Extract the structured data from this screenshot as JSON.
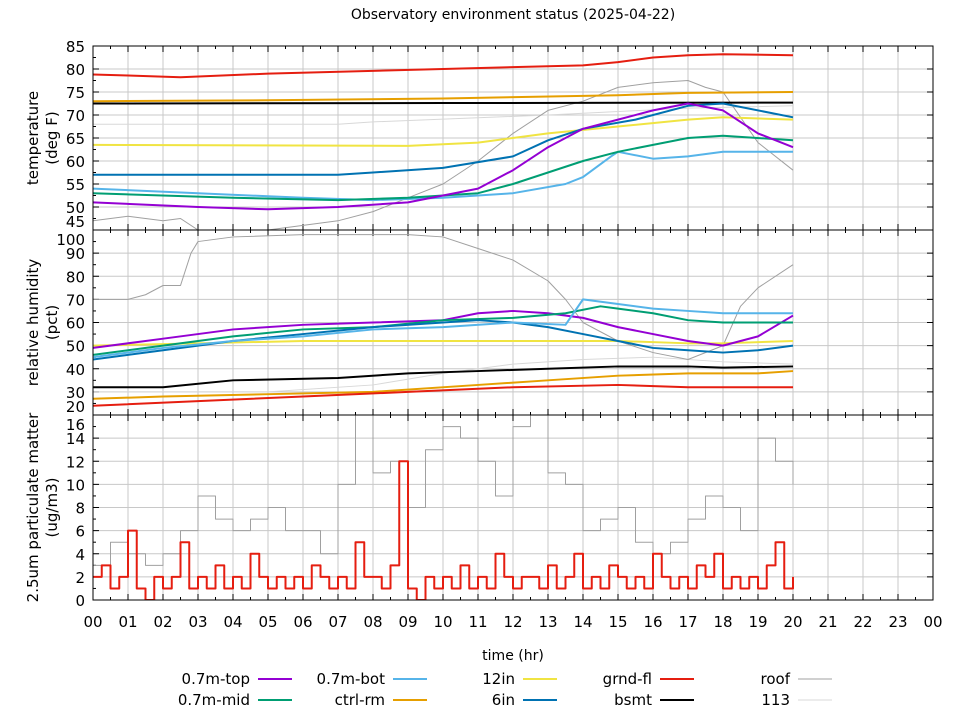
{
  "chart_data": {
    "type": "line",
    "title": "Observatory environment status (2025-04-22)",
    "xlabel": "time (hr)",
    "xlim": [
      0,
      24
    ],
    "xticks": [
      "00",
      "01",
      "02",
      "03",
      "04",
      "05",
      "06",
      "07",
      "08",
      "09",
      "10",
      "11",
      "12",
      "13",
      "14",
      "15",
      "16",
      "17",
      "18",
      "19",
      "20",
      "21",
      "22",
      "23",
      "00"
    ],
    "colors": {
      "0.7m-top": "#9400d3",
      "0.7m-mid": "#009e73",
      "0.7m-bot": "#56b4e9",
      "ctrl-rm": "#e69f00",
      "12in": "#f0e442",
      "6in": "#0072b2",
      "grnd-fl": "#e51e10",
      "bsmt": "#000000",
      "roof": "#a0a0a0",
      "113": "#d8d8d8"
    },
    "legend": {
      "placement": "bottom",
      "entries": [
        "0.7m-top",
        "0.7m-bot",
        "12in",
        "grnd-fl",
        "roof",
        "0.7m-mid",
        "ctrl-rm",
        "6in",
        "bsmt",
        "113"
      ]
    },
    "panels": [
      {
        "ylabel": [
          "temperature",
          "(deg F)"
        ],
        "ylim": [
          45,
          85
        ],
        "yticks": [
          "45",
          "50",
          "55",
          "60",
          "65",
          "70",
          "75",
          "80",
          "85"
        ],
        "series": [
          {
            "name": "113",
            "x": [
              0,
              7,
              8,
              13,
              17,
              20
            ],
            "y": [
              68,
              68,
              68.5,
              70,
              71.5,
              72
            ]
          },
          {
            "name": "roof",
            "x": [
              0,
              1,
              2,
              2.5,
              3,
              5,
              6,
              7,
              8,
              9,
              10,
              11,
              12,
              13,
              14,
              15,
              16,
              17,
              17.5,
              18,
              19,
              20
            ],
            "y": [
              47,
              48,
              47,
              47.5,
              45,
              45,
              46,
              47,
              49,
              52,
              55,
              60,
              66,
              71,
              73,
              76,
              77,
              77.5,
              76,
              75,
              64,
              58
            ]
          },
          {
            "name": "grnd-fl",
            "x": [
              0,
              1,
              2.5,
              5,
              10,
              14,
              15,
              16,
              17,
              18,
              20
            ],
            "y": [
              78.8,
              78.6,
              78.2,
              79,
              80,
              80.8,
              81.5,
              82.5,
              83,
              83.2,
              83
            ]
          },
          {
            "name": "ctrl-rm",
            "x": [
              0,
              5,
              10,
              15,
              17,
              20
            ],
            "y": [
              73,
              73.2,
              73.6,
              74.3,
              74.8,
              75
            ]
          },
          {
            "name": "bsmt",
            "x": [
              0,
              10,
              20
            ],
            "y": [
              72.5,
              72.6,
              72.7
            ]
          },
          {
            "name": "12in",
            "x": [
              0,
              9,
              11,
              13,
              15,
              17,
              18,
              20
            ],
            "y": [
              63.5,
              63.3,
              64,
              66,
              67.5,
              69,
              69.5,
              69
            ]
          },
          {
            "name": "6in",
            "x": [
              0,
              7,
              8,
              10,
              12,
              13,
              14,
              15.5,
              17,
              18,
              20
            ],
            "y": [
              57,
              57,
              57.5,
              58.5,
              61,
              64.5,
              67,
              69,
              72,
              72.5,
              69.5
            ]
          },
          {
            "name": "0.7m-bot",
            "x": [
              0,
              3,
              6,
              8,
              10,
              12,
              13.5,
              14,
              14.8,
              15,
              16,
              17,
              18,
              20
            ],
            "y": [
              54,
              53,
              52,
              51.5,
              52,
              53,
              55,
              56.5,
              61,
              62,
              60.5,
              61,
              62,
              62
            ]
          },
          {
            "name": "0.7m-mid",
            "x": [
              0,
              4,
              7,
              9,
              11,
              12,
              13,
              14,
              15,
              16,
              17,
              18,
              20
            ],
            "y": [
              53,
              52,
              51.5,
              52,
              53,
              55,
              57.5,
              60,
              62,
              63.5,
              65,
              65.5,
              64.5
            ]
          },
          {
            "name": "0.7m-top",
            "x": [
              0,
              3,
              5,
              7,
              9,
              11,
              12,
              13,
              14,
              15,
              16,
              17,
              18,
              19,
              20
            ],
            "y": [
              51,
              50,
              49.5,
              50,
              51,
              54,
              58,
              63,
              67,
              69,
              71,
              72.5,
              71,
              66,
              63
            ]
          }
        ]
      },
      {
        "ylabel": [
          "relative humidity",
          "(pct)"
        ],
        "ylim": [
          20,
          100
        ],
        "yticks": [
          "20",
          "30",
          "40",
          "50",
          "60",
          "70",
          "80",
          "90",
          "100"
        ],
        "series": [
          {
            "name": "113",
            "x": [
              0,
              5,
              8,
              10,
              12,
              14,
              16,
              18,
              20
            ],
            "y": [
              30,
              30,
              33,
              38,
              42,
              44,
              45,
              43,
              42
            ]
          },
          {
            "name": "roof",
            "x": [
              0,
              1,
              1.5,
              2,
              2.5,
              2.8,
              3,
              4,
              6,
              8,
              9,
              10,
              11,
              12,
              13,
              13.5,
              14,
              15,
              16,
              17,
              18,
              18.5,
              19,
              20
            ],
            "y": [
              70,
              70,
              72,
              76,
              76,
              90,
              95,
              97,
              98,
              98,
              98,
              97,
              92,
              87,
              78,
              70,
              60,
              52,
              47,
              44,
              50,
              67,
              75,
              85
            ]
          },
          {
            "name": "bsmt",
            "x": [
              0,
              2,
              4,
              7,
              9,
              11,
              13,
              15,
              17,
              18,
              20
            ],
            "y": [
              32,
              32,
              35,
              36,
              38,
              39,
              40,
              41,
              41,
              40.5,
              41
            ]
          },
          {
            "name": "ctrl-rm",
            "x": [
              0,
              2,
              5,
              8,
              11,
              13,
              15,
              17,
              19,
              20
            ],
            "y": [
              27,
              28,
              29,
              30,
              33,
              35,
              37,
              38,
              38,
              39
            ]
          },
          {
            "name": "grnd-fl",
            "x": [
              0,
              3,
              6,
              9,
              12,
              15,
              17,
              20
            ],
            "y": [
              24,
              26,
              28,
              30,
              32,
              33,
              32,
              32
            ]
          },
          {
            "name": "12in",
            "x": [
              0,
              3,
              6,
              10,
              13,
              15,
              17,
              18,
              20
            ],
            "y": [
              50,
              51,
              52,
              52,
              52,
              52,
              51,
              51,
              52
            ]
          },
          {
            "name": "0.7m-top",
            "x": [
              0,
              2,
              4,
              6,
              8,
              10,
              11,
              12,
              13,
              14,
              15,
              16,
              17,
              18,
              19,
              20
            ],
            "y": [
              49,
              53,
              57,
              59,
              60,
              61,
              64,
              65,
              64,
              62,
              58,
              55,
              52,
              50,
              54,
              63
            ]
          },
          {
            "name": "0.7m-mid",
            "x": [
              0,
              2,
              4,
              6,
              8,
              10,
              12,
              13.5,
              14.5,
              15,
              16,
              17,
              18,
              20
            ],
            "y": [
              46,
              50,
              54,
              57,
              58,
              61,
              62,
              64,
              67,
              66,
              64,
              61,
              60,
              60
            ]
          },
          {
            "name": "6in",
            "x": [
              0,
              2,
              4,
              6,
              8,
              10,
              11,
              12,
              13,
              14,
              15,
              16,
              17,
              18,
              19,
              20
            ],
            "y": [
              44,
              48,
              52,
              55,
              58,
              60,
              61,
              60,
              58,
              55,
              52,
              49,
              48,
              47,
              48,
              50
            ]
          },
          {
            "name": "0.7m-bot",
            "x": [
              0,
              2,
              4,
              6,
              8,
              10,
              12,
              13.5,
              14,
              15,
              16,
              17,
              18,
              20
            ],
            "y": [
              45,
              49,
              52,
              54,
              57,
              58,
              60,
              59,
              70,
              68,
              66,
              65,
              64,
              64
            ]
          }
        ]
      },
      {
        "ylabel": [
          "2.5um particulate matter",
          "(ug/m3)"
        ],
        "ylim": [
          0,
          16
        ],
        "yticks": [
          "0",
          "2",
          "4",
          "6",
          "8",
          "10",
          "12",
          "14",
          "16"
        ],
        "series": [
          {
            "name": "roof",
            "step": 0.5,
            "y": [
              3,
              5,
              4,
              3,
              4,
              6,
              9,
              7,
              6,
              7,
              8,
              6,
              6,
              4,
              10,
              16,
              11,
              12,
              8,
              13,
              15,
              14,
              12,
              9,
              15,
              16,
              11,
              10,
              6,
              7,
              8,
              5,
              4,
              5,
              7,
              9,
              8,
              6,
              14,
              12,
              10
            ]
          },
          {
            "name": "grnd-fl",
            "step": 0.25,
            "y": [
              2,
              3,
              1,
              2,
              6,
              1,
              0,
              2,
              1,
              2,
              5,
              1,
              2,
              1,
              3,
              1,
              2,
              1,
              4,
              2,
              1,
              2,
              1,
              2,
              1,
              3,
              2,
              1,
              2,
              1,
              5,
              2,
              2,
              1,
              3,
              12,
              1,
              0,
              2,
              1,
              2,
              1,
              3,
              1,
              2,
              1,
              4,
              2,
              1,
              2,
              2,
              1,
              3,
              1,
              2,
              4,
              1,
              2,
              1,
              3,
              2,
              1,
              2,
              1,
              4,
              2,
              1,
              2,
              1,
              3,
              2,
              4,
              1,
              2,
              1,
              2,
              1,
              3,
              5,
              1,
              2
            ]
          }
        ]
      }
    ]
  }
}
